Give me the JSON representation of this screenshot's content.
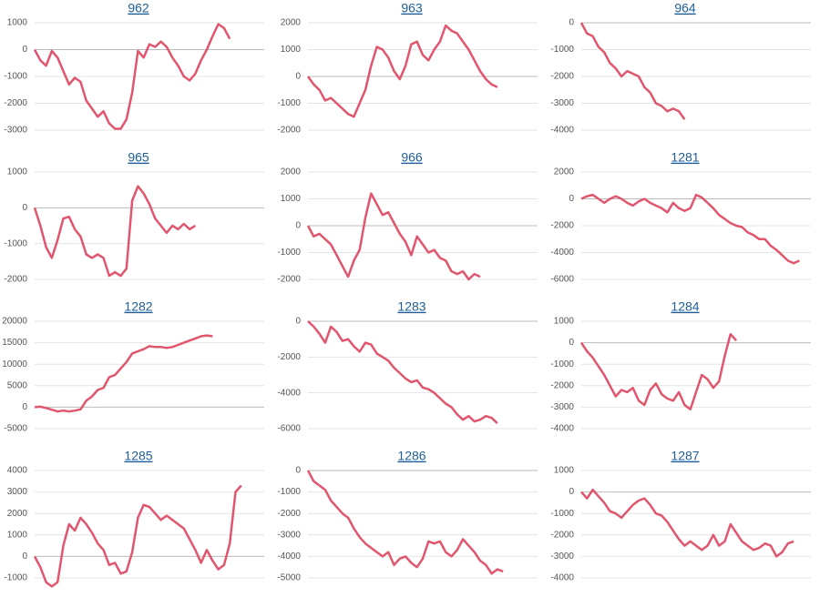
{
  "chart_data": [
    {
      "type": "line",
      "title": "962",
      "color": "#e0566e",
      "ylim": [
        -3000,
        1000
      ],
      "yticks": [
        -3000,
        -2000,
        -1000,
        0,
        1000
      ],
      "values": [
        0,
        -400,
        -600,
        -50,
        -300,
        -800,
        -1300,
        -1050,
        -1200,
        -1900,
        -2200,
        -2500,
        -2300,
        -2750,
        -2950,
        -2950,
        -2600,
        -1600,
        -50,
        -300,
        200,
        100,
        300,
        100,
        -300,
        -600,
        -1000,
        -1150,
        -900,
        -400,
        0,
        500,
        950,
        800,
        400
      ]
    },
    {
      "type": "line",
      "title": "963",
      "color": "#e0566e",
      "ylim": [
        -2000,
        2000
      ],
      "yticks": [
        -2000,
        -1000,
        0,
        1000,
        2000
      ],
      "values": [
        0,
        -300,
        -500,
        -900,
        -800,
        -1000,
        -1200,
        -1400,
        -1500,
        -1000,
        -500,
        400,
        1100,
        1000,
        700,
        200,
        -100,
        400,
        1200,
        1300,
        800,
        600,
        1000,
        1300,
        1900,
        1700,
        1600,
        1300,
        1000,
        600,
        200,
        -100,
        -300,
        -400
      ]
    },
    {
      "type": "line",
      "title": "964",
      "color": "#e0566e",
      "ylim": [
        -4000,
        0
      ],
      "yticks": [
        -4000,
        -3000,
        -2000,
        -1000,
        0
      ],
      "values": [
        0,
        -400,
        -500,
        -900,
        -1100,
        -1500,
        -1700,
        -2000,
        -1800,
        -1900,
        -2000,
        -2400,
        -2600,
        -3000,
        -3100,
        -3300,
        -3200,
        -3300,
        -3600
      ]
    },
    {
      "type": "line",
      "title": "965",
      "color": "#e0566e",
      "ylim": [
        -2000,
        1000
      ],
      "yticks": [
        -2000,
        -1000,
        0,
        1000
      ],
      "values": [
        0,
        -500,
        -1100,
        -1400,
        -900,
        -300,
        -250,
        -600,
        -800,
        -1300,
        -1400,
        -1300,
        -1400,
        -1900,
        -1800,
        -1900,
        -1700,
        200,
        600,
        400,
        100,
        -300,
        -500,
        -700,
        -500,
        -600,
        -450,
        -600,
        -500
      ]
    },
    {
      "type": "line",
      "title": "966",
      "color": "#e0566e",
      "ylim": [
        -2000,
        2000
      ],
      "yticks": [
        -2000,
        -1000,
        0,
        1000,
        2000
      ],
      "values": [
        0,
        -400,
        -300,
        -500,
        -700,
        -1100,
        -1500,
        -1900,
        -1300,
        -900,
        300,
        1200,
        800,
        400,
        500,
        100,
        -300,
        -600,
        -1100,
        -400,
        -700,
        -1000,
        -900,
        -1200,
        -1300,
        -1700,
        -1800,
        -1700,
        -2000,
        -1800,
        -1900
      ]
    },
    {
      "type": "line",
      "title": "1281",
      "color": "#e0566e",
      "ylim": [
        -6000,
        2000
      ],
      "yticks": [
        -6000,
        -4000,
        -2000,
        0,
        2000
      ],
      "values": [
        0,
        200,
        300,
        0,
        -300,
        0,
        200,
        0,
        -300,
        -500,
        -200,
        0,
        -300,
        -500,
        -700,
        -1000,
        -300,
        -700,
        -900,
        -700,
        300,
        100,
        -300,
        -700,
        -1200,
        -1500,
        -1800,
        -2000,
        -2100,
        -2500,
        -2700,
        -3000,
        -3000,
        -3500,
        -3800,
        -4200,
        -4600,
        -4800,
        -4600
      ]
    },
    {
      "type": "line",
      "title": "1282",
      "color": "#e0566e",
      "ylim": [
        -5000,
        20000
      ],
      "yticks": [
        -5000,
        0,
        5000,
        10000,
        15000,
        20000
      ],
      "values": [
        0,
        100,
        -200,
        -600,
        -1000,
        -800,
        -1000,
        -800,
        -500,
        1500,
        2500,
        4000,
        4500,
        7000,
        7500,
        9000,
        10500,
        12500,
        13000,
        13500,
        14200,
        14000,
        14000,
        13800,
        14000,
        14500,
        15000,
        15500,
        16000,
        16500,
        16700,
        16500
      ]
    },
    {
      "type": "line",
      "title": "1283",
      "color": "#e0566e",
      "ylim": [
        -6000,
        0
      ],
      "yticks": [
        -6000,
        -4000,
        -2000,
        0
      ],
      "values": [
        0,
        -300,
        -700,
        -1200,
        -300,
        -600,
        -1100,
        -1000,
        -1400,
        -1700,
        -1200,
        -1300,
        -1800,
        -2000,
        -2200,
        -2600,
        -2900,
        -3200,
        -3400,
        -3300,
        -3700,
        -3800,
        -4000,
        -4300,
        -4600,
        -4800,
        -5200,
        -5500,
        -5300,
        -5600,
        -5500,
        -5300,
        -5400,
        -5700
      ]
    },
    {
      "type": "line",
      "title": "1284",
      "color": "#e0566e",
      "ylim": [
        -4000,
        1000
      ],
      "yticks": [
        -4000,
        -3000,
        -2000,
        -1000,
        0,
        1000
      ],
      "values": [
        0,
        -400,
        -700,
        -1100,
        -1500,
        -2000,
        -2500,
        -2200,
        -2300,
        -2100,
        -2700,
        -2900,
        -2200,
        -1900,
        -2400,
        -2600,
        -2700,
        -2300,
        -2900,
        -3100,
        -2300,
        -1500,
        -1700,
        -2100,
        -1800,
        -600,
        400,
        100
      ]
    },
    {
      "type": "line",
      "title": "1285",
      "color": "#e0566e",
      "ylim": [
        -1000,
        4000
      ],
      "yticks": [
        -1000,
        0,
        1000,
        2000,
        3000,
        4000
      ],
      "values": [
        0,
        -500,
        -1200,
        -1400,
        -1200,
        500,
        1500,
        1200,
        1800,
        1500,
        1100,
        600,
        300,
        -400,
        -300,
        -800,
        -700,
        200,
        1800,
        2400,
        2300,
        2000,
        1700,
        1900,
        1700,
        1500,
        1300,
        800,
        300,
        -300,
        300,
        -200,
        -600,
        -400,
        600,
        3000,
        3300
      ]
    },
    {
      "type": "line",
      "title": "1286",
      "color": "#e0566e",
      "ylim": [
        -5000,
        0
      ],
      "yticks": [
        -5000,
        -4000,
        -3000,
        -2000,
        -1000,
        0
      ],
      "values": [
        0,
        -500,
        -700,
        -900,
        -1400,
        -1700,
        -2000,
        -2200,
        -2700,
        -3100,
        -3400,
        -3600,
        -3800,
        -4000,
        -3800,
        -4400,
        -4100,
        -4000,
        -4300,
        -4500,
        -4100,
        -3300,
        -3400,
        -3300,
        -3800,
        -4000,
        -3700,
        -3200,
        -3500,
        -3800,
        -4200,
        -4400,
        -4800,
        -4600,
        -4700
      ]
    },
    {
      "type": "line",
      "title": "1287",
      "color": "#e0566e",
      "ylim": [
        -4000,
        1000
      ],
      "yticks": [
        -4000,
        -3000,
        -2000,
        -1000,
        0,
        1000
      ],
      "values": [
        0,
        -300,
        100,
        -200,
        -500,
        -900,
        -1000,
        -1200,
        -900,
        -600,
        -400,
        -300,
        -600,
        -1000,
        -1100,
        -1400,
        -1800,
        -2200,
        -2500,
        -2300,
        -2500,
        -2700,
        -2500,
        -2000,
        -2500,
        -2300,
        -1500,
        -1900,
        -2300,
        -2500,
        -2700,
        -2600,
        -2400,
        -2500,
        -3000,
        -2800,
        -2400,
        -2300
      ]
    }
  ]
}
